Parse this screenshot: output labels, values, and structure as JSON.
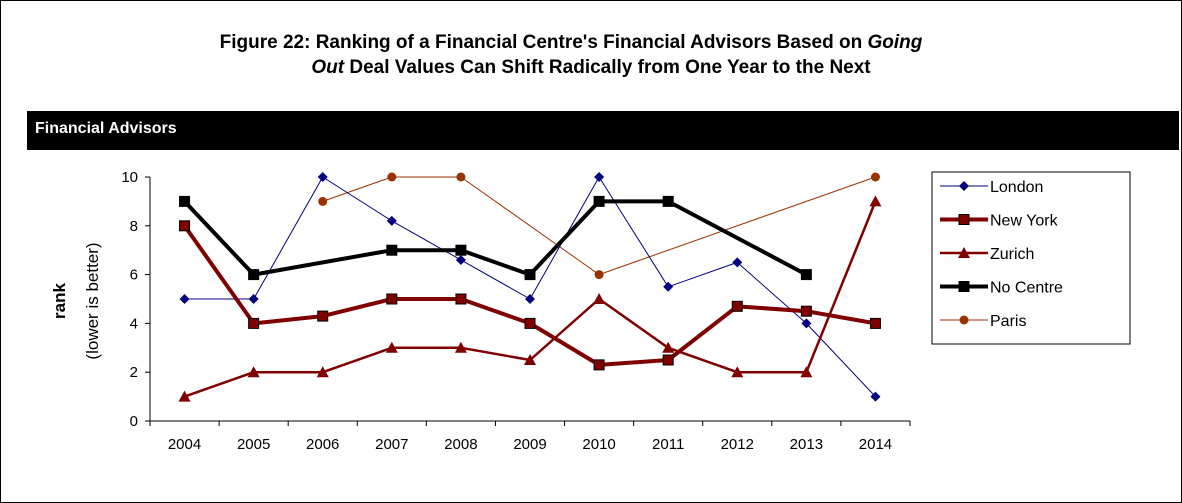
{
  "figure": {
    "title_line1": "Figure 22: Ranking of a Financial Centre's Financial Advisors Based on",
    "title_line1_italic": "Going",
    "title_line2_italic": "Out",
    "title_line2": "Deal Values Can Shift Radically from One Year to the Next"
  },
  "banner": {
    "label": "Financial Advisors"
  },
  "chart_data": {
    "type": "line",
    "title": "",
    "ylabel_bold": "rank",
    "ylabel_sub": "(lower is better)",
    "xlabel": "",
    "categories": [
      "2004",
      "2005",
      "2006",
      "2007",
      "2008",
      "2009",
      "2010",
      "2011",
      "2012",
      "2013",
      "2014"
    ],
    "ylim": [
      0,
      10
    ],
    "yticks": [
      0,
      2,
      4,
      6,
      8,
      10
    ],
    "grid": false,
    "legend_position": "right",
    "series": [
      {
        "name": "London",
        "color": "#000080",
        "marker": "diamond",
        "weight": "thin",
        "values": [
          5,
          5,
          10,
          8.2,
          6.6,
          5,
          10,
          5.5,
          6.5,
          4,
          1
        ]
      },
      {
        "name": "New York",
        "color": "#800000",
        "marker": "square",
        "weight": "thick",
        "values": [
          8,
          4,
          4.3,
          5,
          5,
          4,
          2.3,
          2.5,
          4.7,
          4.5,
          4
        ]
      },
      {
        "name": "Zurich",
        "color": "#800000",
        "marker": "triangle",
        "weight": "medium",
        "values": [
          1,
          2,
          2,
          3,
          3,
          2.5,
          5,
          3,
          2,
          2,
          9
        ]
      },
      {
        "name": "No Centre",
        "color": "#000000",
        "marker": "square",
        "weight": "thick",
        "values": [
          9,
          6,
          null,
          7,
          7,
          6,
          9,
          9,
          null,
          6,
          null
        ]
      },
      {
        "name": "Paris",
        "color": "#993300",
        "marker": "circle",
        "weight": "thin",
        "values": [
          null,
          null,
          9,
          10,
          10,
          null,
          6,
          null,
          null,
          null,
          10
        ]
      }
    ]
  }
}
